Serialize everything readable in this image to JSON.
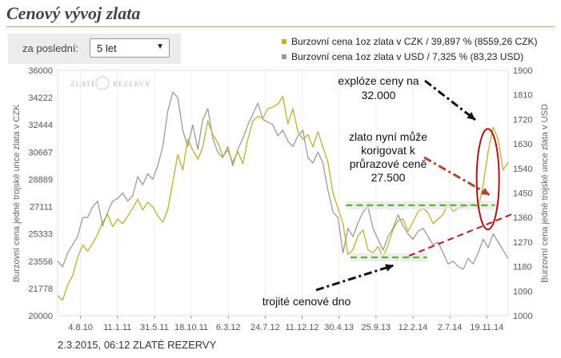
{
  "page": {
    "title": "Cenový vývoj zlata"
  },
  "period": {
    "label": "za poslední:",
    "value": "5 let"
  },
  "legend": [
    {
      "text": "Burzovní cena 1oz zlata v CZK / 39,897 % (8559,26 CZK)",
      "color": "#c8ac2a"
    },
    {
      "text": "Burzovní cena 1oz zlata v USD / 7,325 % (83,23 USD)",
      "color": "#9b9b9b"
    }
  ],
  "footer": "2.3.2015, 06:12 ZLATÉ REZERVY",
  "watermark": {
    "left": "ZLATÉ",
    "right": "REZERVY"
  },
  "chart_data": {
    "type": "line",
    "x_tick_labels": [
      "4.8.10",
      "11.1.11",
      "31.5.11",
      "18.10.11",
      "6.3.12",
      "24.7.12",
      "11.12.12",
      "30.4.13",
      "25.9.13",
      "12.2.14",
      "2.7.14",
      "19.11.14"
    ],
    "y_left": {
      "label": "Burzovní cena jedné trojské unce zlata v CZK",
      "range": [
        20000,
        36000
      ],
      "ticks": [
        "20000",
        "21778",
        "23556",
        "25333",
        "27111",
        "28889",
        "30667",
        "32444",
        "34222",
        "36000"
      ]
    },
    "y_right": {
      "label": "Burzovní cena jedné trojské unce zlata v USD",
      "range": [
        1000,
        1900
      ],
      "ticks": [
        "1000",
        "1090",
        "1180",
        "1270",
        "1360",
        "1450",
        "1540",
        "1630",
        "1720",
        "1810",
        "1900"
      ]
    },
    "series": [
      {
        "name": "Burzovní cena 1oz zlata v CZK",
        "axis": "left",
        "color": "#c8ac2a",
        "values": [
          21300,
          21000,
          22000,
          22600,
          23800,
          24600,
          24200,
          24700,
          25300,
          26100,
          26600,
          25800,
          26300,
          26000,
          26500,
          27000,
          27600,
          26900,
          27400,
          27100,
          26500,
          26100,
          26900,
          28700,
          30500,
          29500,
          31500,
          30800,
          30200,
          31000,
          32700,
          31800,
          31300,
          30400,
          30800,
          30000,
          30700,
          29900,
          31500,
          32700,
          33000,
          32900,
          33500,
          33600,
          33800,
          34300,
          32500,
          33500,
          32000,
          31500,
          31800,
          31000,
          32000,
          31000,
          30000,
          28000,
          27000,
          26000,
          24000,
          24300,
          25200,
          25600,
          24300,
          24100,
          24500,
          23800,
          24600,
          25600,
          26200,
          26300,
          25500,
          26100,
          26800,
          27000,
          26700,
          26000,
          26300,
          26600,
          27300,
          26800,
          27000,
          27100,
          27200,
          27300,
          27000,
          28500,
          30700,
          32300,
          31500,
          29500,
          30000
        ]
      },
      {
        "name": "Burzovní cena 1oz zlata v USD",
        "axis": "right",
        "color": "#9b9b9b",
        "values": [
          1200,
          1180,
          1230,
          1260,
          1290,
          1360,
          1360,
          1400,
          1420,
          1330,
          1380,
          1420,
          1430,
          1450,
          1420,
          1440,
          1510,
          1480,
          1520,
          1500,
          1550,
          1620,
          1750,
          1820,
          1800,
          1680,
          1620,
          1700,
          1610,
          1720,
          1760,
          1650,
          1600,
          1580,
          1620,
          1550,
          1610,
          1650,
          1700,
          1740,
          1780,
          1720,
          1710,
          1700,
          1660,
          1680,
          1640,
          1620,
          1660,
          1680,
          1580,
          1560,
          1600,
          1560,
          1460,
          1380,
          1360,
          1230,
          1320,
          1290,
          1340,
          1380,
          1400,
          1320,
          1280,
          1240,
          1290,
          1320,
          1370,
          1330,
          1300,
          1280,
          1310,
          1320,
          1290,
          1260,
          1270,
          1230,
          1190,
          1200,
          1180,
          1170,
          1210,
          1190,
          1230,
          1280,
          1250,
          1300,
          1270,
          1240,
          1210
        ]
      }
    ],
    "annotations": [
      {
        "text": [
          "explóze ceny na",
          "32.000"
        ]
      },
      {
        "text": [
          "zlato nyní může",
          "korigovat k",
          "průrazové ceně",
          "27.500"
        ]
      },
      {
        "text": [
          "trojité cenové dno"
        ]
      }
    ],
    "grid": "x",
    "support_levels": {
      "upper": 27200,
      "lower": 23800
    }
  }
}
